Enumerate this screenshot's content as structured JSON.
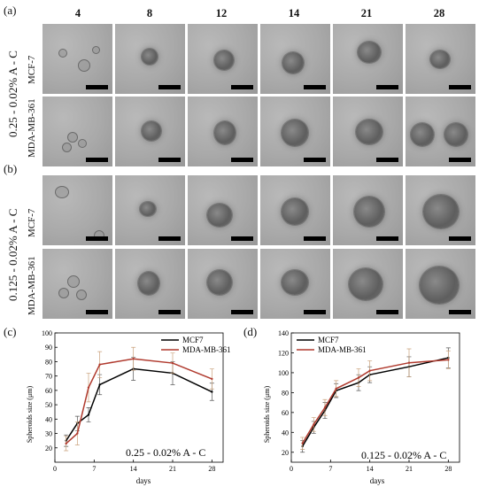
{
  "panel_labels": {
    "a": "(a)",
    "b": "(b)",
    "c": "(c)",
    "d": "(d)"
  },
  "days_header": [
    "4",
    "8",
    "12",
    "14",
    "21",
    "28"
  ],
  "groups": [
    {
      "label": "0.25 - 0.02% A - C",
      "rows": [
        "MCF-7",
        "MDA-MB-361"
      ]
    },
    {
      "label": "0.125 - 0.02% A - C",
      "rows": [
        "MCF-7",
        "MDA-MB-361"
      ]
    }
  ],
  "chart_data": [
    {
      "type": "line",
      "annotation": "0.25 - 0.02% A - C",
      "xlabel": "days",
      "ylabel": "Spheroids size (μm)",
      "xlim": [
        0,
        30
      ],
      "ylim": [
        10,
        100
      ],
      "xticks": [
        0,
        7,
        14,
        21,
        28
      ],
      "yticks": [
        20,
        30,
        40,
        50,
        60,
        70,
        80,
        90,
        100
      ],
      "legend": "top-right",
      "x": [
        2,
        4,
        6,
        8,
        14,
        21,
        28
      ],
      "series": [
        {
          "name": "MCF7",
          "color": "#000000",
          "values": [
            25,
            37,
            43,
            64,
            75,
            72,
            59
          ],
          "errors": [
            4,
            5,
            5,
            7,
            8,
            8,
            6
          ]
        },
        {
          "name": "MDA-MB-361",
          "color": "#b03a2e",
          "values": [
            23,
            30,
            62,
            78,
            82,
            79,
            68
          ],
          "errors": [
            5,
            8,
            10,
            9,
            8,
            7,
            7
          ]
        }
      ]
    },
    {
      "type": "line",
      "annotation": "0.125 - 0.02% A - C",
      "xlabel": "days",
      "ylabel": "Spheroids size (μm)",
      "xlim": [
        0,
        30
      ],
      "ylim": [
        10,
        140
      ],
      "xticks": [
        0,
        7,
        14,
        21,
        28
      ],
      "yticks": [
        20,
        40,
        60,
        80,
        100,
        120,
        140
      ],
      "legend": "top-left",
      "x": [
        2,
        4,
        6,
        8,
        12,
        14,
        21,
        28
      ],
      "series": [
        {
          "name": "MCF7",
          "color": "#000000",
          "values": [
            26,
            45,
            62,
            82,
            90,
            98,
            106,
            115
          ],
          "errors": [
            6,
            6,
            8,
            7,
            8,
            8,
            10,
            10
          ]
        },
        {
          "name": "MDA-MB-361",
          "color": "#b03a2e",
          "values": [
            29,
            48,
            65,
            84,
            95,
            102,
            110,
            113
          ],
          "errors": [
            6,
            7,
            8,
            8,
            9,
            10,
            14,
            9
          ]
        }
      ]
    }
  ]
}
